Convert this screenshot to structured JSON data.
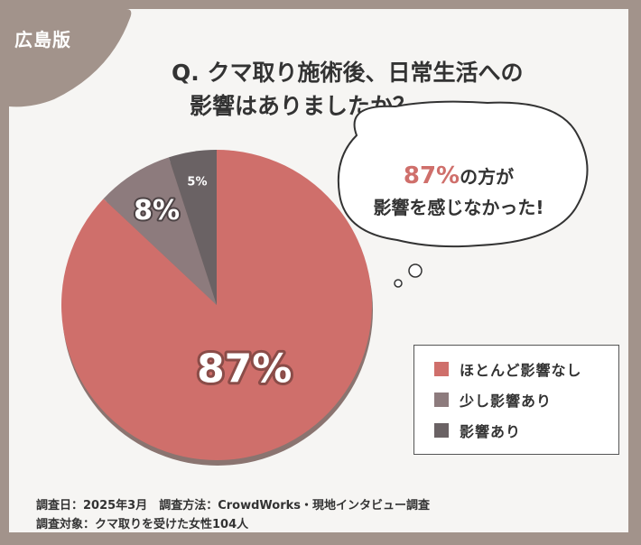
{
  "badge": {
    "region": "広島版"
  },
  "question": {
    "line1": "Q. クマ取り施術後、日常生活への",
    "line2": "影響はありましたか？"
  },
  "callout": {
    "highlight": "87%",
    "text1": "の方が",
    "text2": "影響を感じなかった!"
  },
  "chart_data": {
    "type": "pie",
    "categories": [
      "ほとんど影響なし",
      "少し影響あり",
      "影響あり"
    ],
    "values": [
      87,
      8,
      5
    ],
    "data_labels": [
      "87%",
      "8%",
      "5%"
    ],
    "colors": [
      "#cf6f6b",
      "#8d7b7d",
      "#6a6264"
    ],
    "legend_position": "right",
    "unit": "%"
  },
  "legend": {
    "items": [
      {
        "label": "ほとんど影響なし",
        "color": "#cf6f6b"
      },
      {
        "label": "少し影響あり",
        "color": "#8d7b7d"
      },
      {
        "label": "影響あり",
        "color": "#6a6264"
      }
    ]
  },
  "footer": {
    "line1": "調査日：2025年3月　調査方法：CrowdWorks・現地インタビュー調査",
    "line2": "調査対象：クマ取りを受けた女性104人"
  }
}
